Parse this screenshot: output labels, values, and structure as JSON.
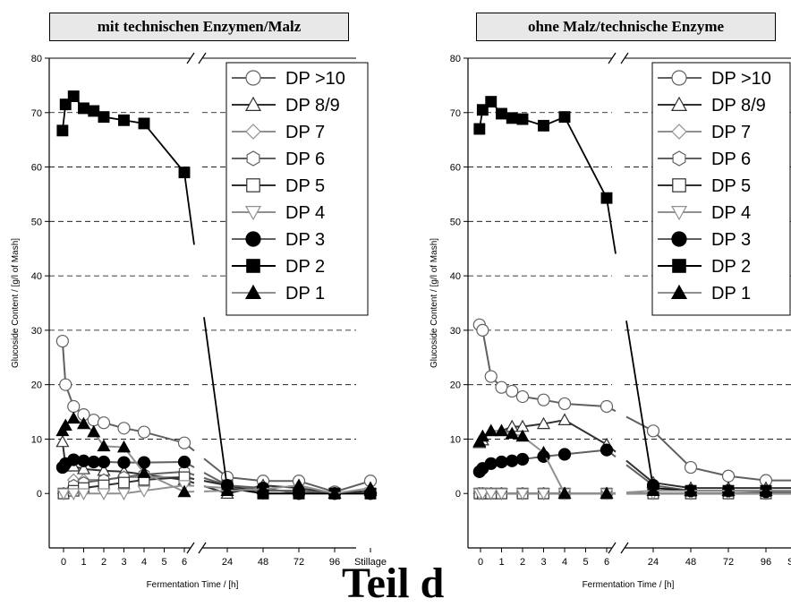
{
  "big_text": "Teil d",
  "chart_data": [
    {
      "type": "line",
      "title": "mit technischen Enzymen/Malz",
      "ylabel": "Glucoside Content / [g/l of Mash]",
      "xlabel": "Fermentation Time / [h]",
      "ylim": [
        -10,
        80
      ],
      "yticks": [
        0,
        10,
        20,
        30,
        40,
        50,
        60,
        70,
        80
      ],
      "xticks_left": [
        "0",
        "1",
        "2",
        "3",
        "4",
        "5",
        "6"
      ],
      "xticks_right": [
        "24",
        "48",
        "72",
        "96",
        "Stillage"
      ],
      "grid": "horizontal dashed",
      "legend_position": "top-right",
      "series": [
        {
          "name": "DP >10",
          "marker": "circle-open",
          "color": "#606060",
          "left": [
            [
              -0.05,
              28
            ],
            [
              0.1,
              20
            ],
            [
              0.5,
              16
            ],
            [
              1,
              14.5
            ],
            [
              1.5,
              13.5
            ],
            [
              2,
              13
            ],
            [
              3,
              12
            ],
            [
              4,
              11.3
            ],
            [
              6,
              9.3
            ]
          ],
          "right": [
            [
              24,
              3
            ],
            [
              48,
              2.3
            ],
            [
              72,
              2.3
            ],
            [
              96,
              0.3
            ],
            [
              120,
              2.3
            ]
          ]
        },
        {
          "name": "DP 8/9",
          "marker": "triangle-open",
          "color": "#303030",
          "left": [
            [
              -0.05,
              9.5
            ],
            [
              0.1,
              5
            ],
            [
              0.5,
              5
            ],
            [
              1,
              4.5
            ],
            [
              2,
              4.2
            ],
            [
              3,
              4
            ],
            [
              4,
              3.5
            ],
            [
              6,
              2.5
            ]
          ],
          "right": [
            [
              24,
              0
            ],
            [
              48,
              1.5
            ],
            [
              72,
              1
            ],
            [
              96,
              0
            ],
            [
              120,
              0.5
            ]
          ]
        },
        {
          "name": "DP 7",
          "marker": "diamond-open",
          "color": "#909090",
          "left": [
            [
              0,
              0
            ],
            [
              0.5,
              2.5
            ],
            [
              1,
              2.5
            ],
            [
              2,
              2.5
            ],
            [
              3,
              3
            ],
            [
              4,
              3
            ],
            [
              6,
              3
            ]
          ],
          "right": [
            [
              24,
              1.5
            ],
            [
              48,
              0.5
            ],
            [
              72,
              0.5
            ],
            [
              96,
              0
            ],
            [
              120,
              0
            ]
          ]
        },
        {
          "name": "DP 6",
          "marker": "hexagon-open",
          "color": "#606060",
          "left": [
            [
              0,
              0
            ],
            [
              0.5,
              1.5
            ],
            [
              1,
              2
            ],
            [
              2,
              2.5
            ],
            [
              3,
              3
            ],
            [
              4,
              3.5
            ],
            [
              6,
              4
            ]
          ],
          "right": [
            [
              24,
              1.5
            ],
            [
              48,
              0.5
            ],
            [
              72,
              0.5
            ],
            [
              96,
              0
            ],
            [
              120,
              0
            ]
          ]
        },
        {
          "name": "DP 5",
          "marker": "square-open",
          "color": "#303030",
          "left": [
            [
              0,
              0
            ],
            [
              0.5,
              0.5
            ],
            [
              1,
              1
            ],
            [
              2,
              1.5
            ],
            [
              3,
              2
            ],
            [
              4,
              2.5
            ],
            [
              6,
              3
            ]
          ],
          "right": [
            [
              24,
              1.5
            ],
            [
              48,
              0
            ],
            [
              72,
              0
            ],
            [
              96,
              0
            ],
            [
              120,
              0
            ]
          ]
        },
        {
          "name": "DP 4",
          "marker": "triangle-down-open",
          "color": "#909090",
          "left": [
            [
              0,
              0
            ],
            [
              0.5,
              0
            ],
            [
              1,
              0
            ],
            [
              2,
              0
            ],
            [
              3,
              0
            ],
            [
              4,
              0.5
            ],
            [
              6,
              1.5
            ]
          ],
          "right": [
            [
              24,
              1
            ],
            [
              48,
              0
            ],
            [
              72,
              0
            ],
            [
              96,
              0
            ],
            [
              120,
              0
            ]
          ]
        },
        {
          "name": "DP 3",
          "marker": "circle-filled",
          "color": "#606060",
          "left": [
            [
              -0.05,
              4.8
            ],
            [
              0.1,
              5.5
            ],
            [
              0.5,
              6.2
            ],
            [
              1,
              6
            ],
            [
              1.5,
              5.8
            ],
            [
              2,
              5.8
            ],
            [
              3,
              5.7
            ],
            [
              4,
              5.7
            ],
            [
              6,
              5.8
            ]
          ],
          "right": [
            [
              24,
              1.5
            ],
            [
              48,
              1
            ],
            [
              72,
              0
            ],
            [
              96,
              0
            ],
            [
              120,
              0
            ]
          ]
        },
        {
          "name": "DP 2",
          "marker": "square-filled",
          "color": "#000000",
          "left": [
            [
              -0.05,
              66.7
            ],
            [
              0.1,
              71.5
            ],
            [
              0.5,
              73
            ],
            [
              1,
              70.8
            ],
            [
              1.5,
              70.3
            ],
            [
              2,
              69.2
            ],
            [
              3,
              68.6
            ],
            [
              4,
              68
            ],
            [
              6,
              59
            ]
          ],
          "right": [
            [
              24,
              1
            ],
            [
              48,
              0
            ],
            [
              72,
              0
            ],
            [
              96,
              0
            ],
            [
              120,
              0
            ]
          ]
        },
        {
          "name": "DP 1",
          "marker": "triangle-filled",
          "color": "#909090",
          "left": [
            [
              -0.05,
              11.5
            ],
            [
              0.1,
              12.5
            ],
            [
              0.5,
              13.8
            ],
            [
              1,
              12.8
            ],
            [
              1.5,
              11.3
            ],
            [
              2,
              8.7
            ],
            [
              3,
              8.5
            ],
            [
              4,
              3.8
            ],
            [
              6,
              0.3
            ]
          ],
          "right": [
            [
              24,
              0.5
            ],
            [
              48,
              0.8
            ],
            [
              72,
              1.5
            ],
            [
              96,
              0
            ],
            [
              120,
              1
            ]
          ]
        }
      ]
    },
    {
      "type": "line",
      "title": "ohne Malz/technische Enzyme",
      "ylabel": "Glucoside Content / [g/l of Mash]",
      "xlabel": "Fermentation Time / [h]",
      "ylim": [
        -10,
        80
      ],
      "yticks": [
        0,
        10,
        20,
        30,
        40,
        50,
        60,
        70,
        80
      ],
      "xticks_left": [
        "0",
        "1",
        "2",
        "3",
        "4",
        "5",
        "6"
      ],
      "xticks_right": [
        "24",
        "48",
        "72",
        "96",
        "Stillage"
      ],
      "grid": "horizontal dashed",
      "legend_position": "top-right",
      "series": [
        {
          "name": "DP >10",
          "marker": "circle-open",
          "color": "#606060",
          "left": [
            [
              -0.05,
              31
            ],
            [
              0.1,
              30
            ],
            [
              0.5,
              21.5
            ],
            [
              1,
              19.5
            ],
            [
              1.5,
              18.8
            ],
            [
              2,
              17.8
            ],
            [
              3,
              17.2
            ],
            [
              4,
              16.5
            ],
            [
              6,
              16
            ]
          ],
          "right": [
            [
              24,
              11.5
            ],
            [
              48,
              4.8
            ],
            [
              72,
              3.2
            ],
            [
              96,
              2.4
            ],
            [
              120,
              2.4
            ]
          ]
        },
        {
          "name": "DP 8/9",
          "marker": "triangle-open",
          "color": "#303030",
          "left": [
            [
              -0.05,
              9.3
            ],
            [
              0.1,
              9.8
            ],
            [
              0.5,
              11.5
            ],
            [
              1,
              11.5
            ],
            [
              1.5,
              12.3
            ],
            [
              2,
              12.3
            ],
            [
              3,
              12.8
            ],
            [
              4,
              13.5
            ],
            [
              6,
              9
            ]
          ],
          "right": [
            [
              24,
              2
            ],
            [
              48,
              1
            ],
            [
              72,
              1
            ],
            [
              96,
              1
            ],
            [
              120,
              1
            ]
          ]
        },
        {
          "name": "DP 7",
          "marker": "diamond-open",
          "color": "#909090",
          "left": [
            [
              -0.05,
              0
            ],
            [
              0.1,
              0
            ],
            [
              0.5,
              0
            ],
            [
              1,
              0
            ],
            [
              2,
              0
            ],
            [
              3,
              0
            ],
            [
              4,
              0
            ],
            [
              6,
              0
            ]
          ],
          "right": [
            [
              24,
              0
            ],
            [
              48,
              0
            ],
            [
              72,
              0
            ],
            [
              96,
              0
            ],
            [
              120,
              0
            ]
          ]
        },
        {
          "name": "DP 6",
          "marker": "hexagon-open",
          "color": "#606060",
          "left": [
            [
              -0.05,
              0
            ],
            [
              0.1,
              0
            ],
            [
              0.5,
              0
            ],
            [
              1,
              0
            ],
            [
              2,
              0
            ],
            [
              3,
              0
            ],
            [
              4,
              0
            ],
            [
              6,
              0
            ]
          ],
          "right": [
            [
              24,
              0
            ],
            [
              48,
              0
            ],
            [
              72,
              0
            ],
            [
              96,
              0
            ],
            [
              120,
              0
            ]
          ]
        },
        {
          "name": "DP 5",
          "marker": "square-open",
          "color": "#303030",
          "left": [
            [
              -0.05,
              0
            ],
            [
              0.1,
              0
            ],
            [
              0.5,
              0
            ],
            [
              1,
              0
            ],
            [
              2,
              0
            ],
            [
              3,
              0
            ],
            [
              4,
              0
            ],
            [
              6,
              0
            ]
          ],
          "right": [
            [
              24,
              0
            ],
            [
              48,
              0
            ],
            [
              72,
              0
            ],
            [
              96,
              0
            ],
            [
              120,
              0
            ]
          ]
        },
        {
          "name": "DP 4",
          "marker": "triangle-down-open",
          "color": "#909090",
          "left": [
            [
              -0.05,
              0
            ],
            [
              0.1,
              0
            ],
            [
              0.5,
              0
            ],
            [
              1,
              0
            ],
            [
              2,
              0
            ],
            [
              3,
              0
            ],
            [
              4,
              0
            ],
            [
              6,
              0
            ]
          ],
          "right": [
            [
              24,
              0
            ],
            [
              48,
              0
            ],
            [
              72,
              0
            ],
            [
              96,
              0
            ],
            [
              120,
              0
            ]
          ]
        },
        {
          "name": "DP 3",
          "marker": "circle-filled",
          "color": "#606060",
          "left": [
            [
              -0.05,
              4
            ],
            [
              0.1,
              4.6
            ],
            [
              0.5,
              5.5
            ],
            [
              1,
              5.8
            ],
            [
              1.5,
              6
            ],
            [
              2,
              6.3
            ],
            [
              3,
              6.8
            ],
            [
              4,
              7.2
            ],
            [
              6,
              8
            ]
          ],
          "right": [
            [
              24,
              1.5
            ],
            [
              48,
              0.5
            ],
            [
              72,
              0.5
            ],
            [
              96,
              0.3
            ],
            [
              120,
              0.3
            ]
          ]
        },
        {
          "name": "DP 2",
          "marker": "square-filled",
          "color": "#000000",
          "left": [
            [
              -0.05,
              67
            ],
            [
              0.1,
              70.5
            ],
            [
              0.5,
              72
            ],
            [
              1,
              69.8
            ],
            [
              1.5,
              69
            ],
            [
              2,
              68.8
            ],
            [
              3,
              67.6
            ],
            [
              4,
              69.2
            ],
            [
              6,
              54.3
            ]
          ],
          "right": [
            [
              24,
              1
            ],
            [
              48,
              0.5
            ],
            [
              72,
              0.5
            ],
            [
              96,
              0.5
            ],
            [
              120,
              0.5
            ]
          ]
        },
        {
          "name": "DP 1",
          "marker": "triangle-filled",
          "color": "#909090",
          "left": [
            [
              -0.05,
              9.5
            ],
            [
              0.1,
              10.5
            ],
            [
              0.5,
              11.5
            ],
            [
              1,
              11.5
            ],
            [
              1.5,
              11
            ],
            [
              2,
              10.5
            ],
            [
              3,
              7.5
            ],
            [
              4,
              0
            ],
            [
              6,
              0
            ]
          ],
          "right": [
            [
              24,
              0.5
            ],
            [
              48,
              0.5
            ],
            [
              72,
              0.5
            ],
            [
              96,
              0.5
            ],
            [
              120,
              0.5
            ]
          ]
        }
      ]
    }
  ]
}
